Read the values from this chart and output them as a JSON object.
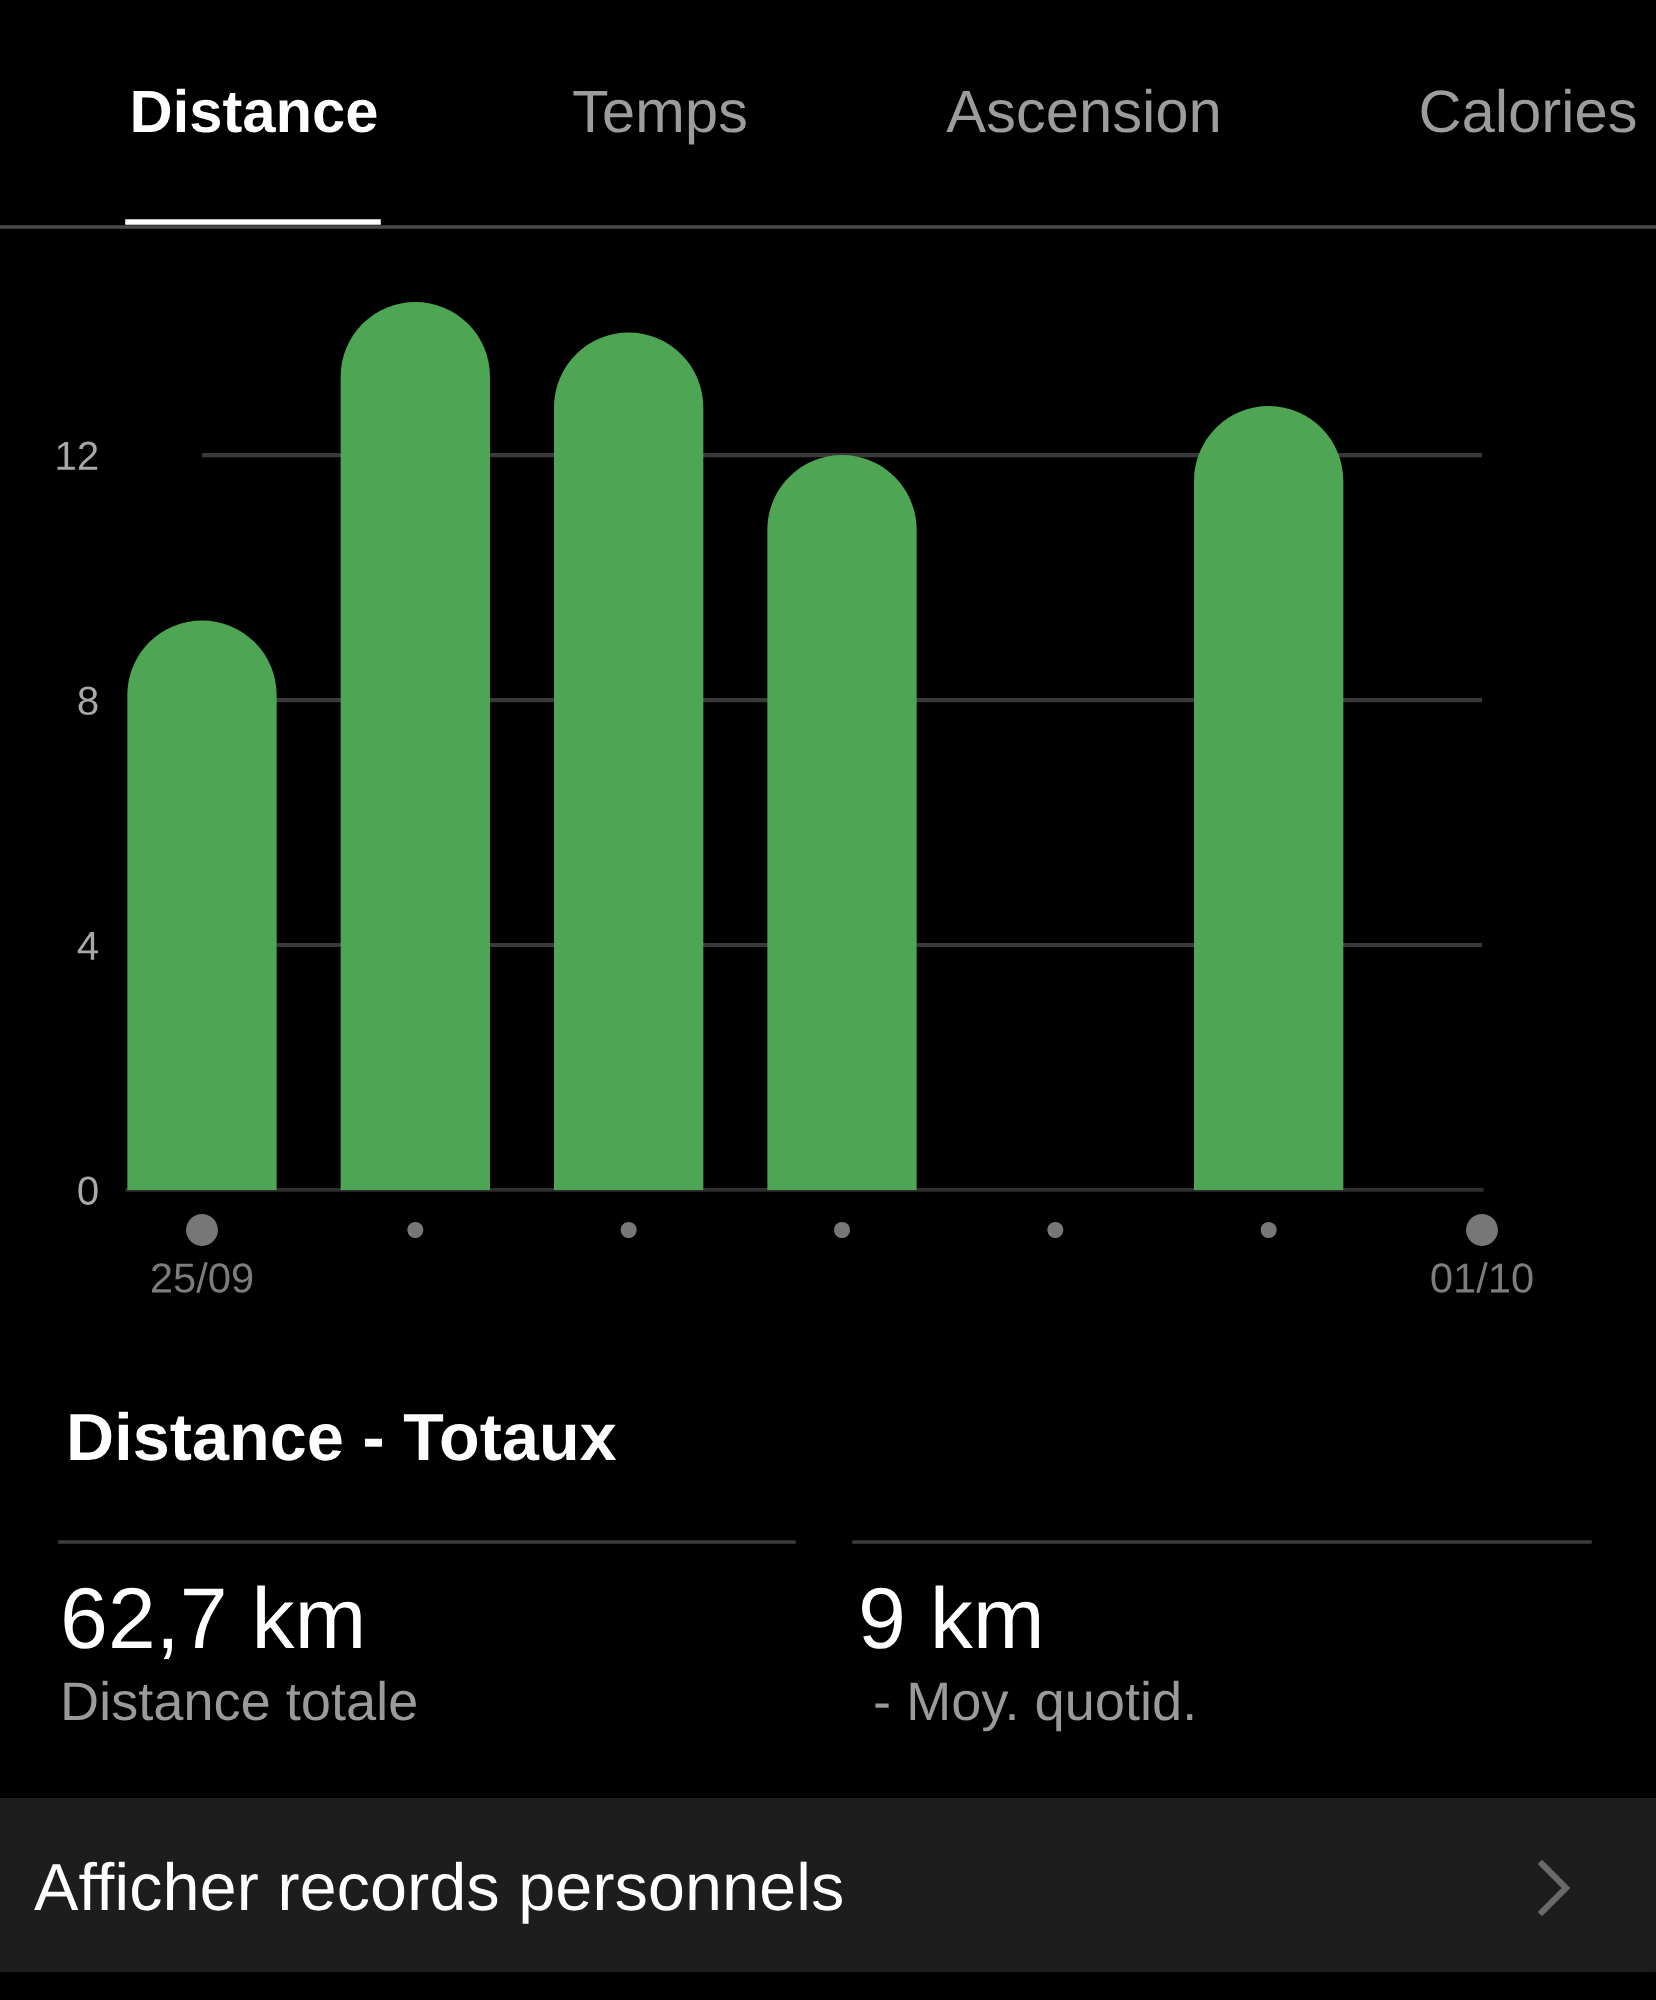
{
  "chart_data": {
    "type": "bar",
    "title": "Distance",
    "categories": [
      "25/09",
      null,
      null,
      null,
      null,
      null,
      "01/10"
    ],
    "values": [
      9.3,
      14.5,
      14.0,
      12.0,
      null,
      12.8,
      null
    ],
    "color": "#4ea553",
    "ylim": [
      0,
      14.5
    ],
    "yticks": [
      0,
      4,
      8,
      12
    ],
    "grid": "y",
    "annotations": [
      "Temps",
      "Ascension",
      "Calories",
      "Distance - Totaux",
      "62,7 km",
      "Distance totale",
      "9 km",
      " - Moy. quotid.",
      "Afficher records personnels"
    ]
  }
}
